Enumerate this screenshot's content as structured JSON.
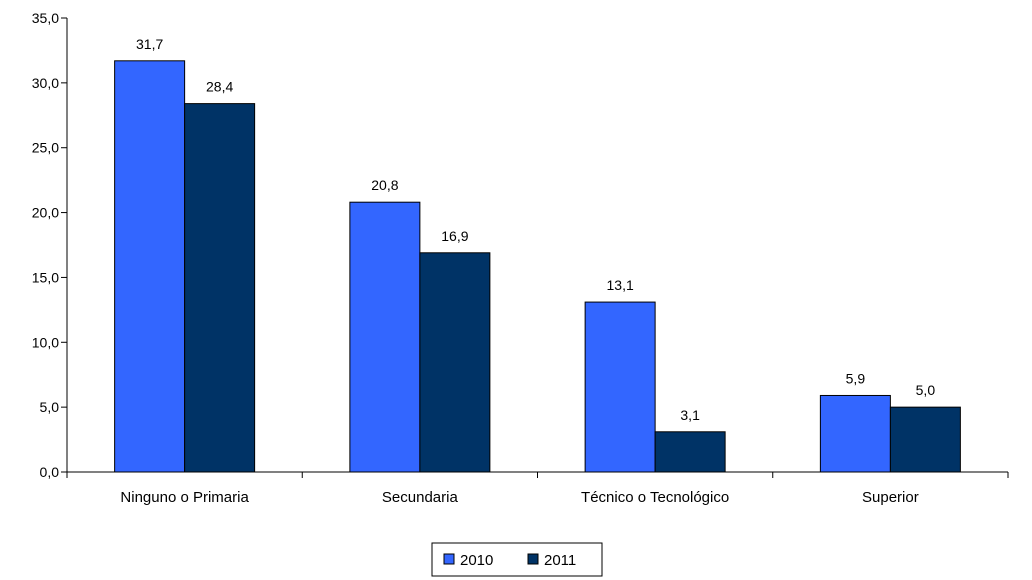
{
  "chart_data": {
    "type": "bar",
    "categories": [
      "Ninguno o Primaria",
      "Secundaria",
      "Técnico o Tecnológico",
      "Superior"
    ],
    "series": [
      {
        "name": "2010",
        "values": [
          31.7,
          20.8,
          13.1,
          5.9
        ],
        "color": "#3366FF"
      },
      {
        "name": "2011",
        "values": [
          28.4,
          16.9,
          3.1,
          5.0
        ],
        "color": "#003366"
      }
    ],
    "ylim": [
      0,
      35
    ],
    "yticks": [
      0,
      5,
      10,
      15,
      20,
      25,
      30,
      35
    ],
    "grid": false,
    "legend": "bottom-center",
    "decimal_separator": ","
  }
}
